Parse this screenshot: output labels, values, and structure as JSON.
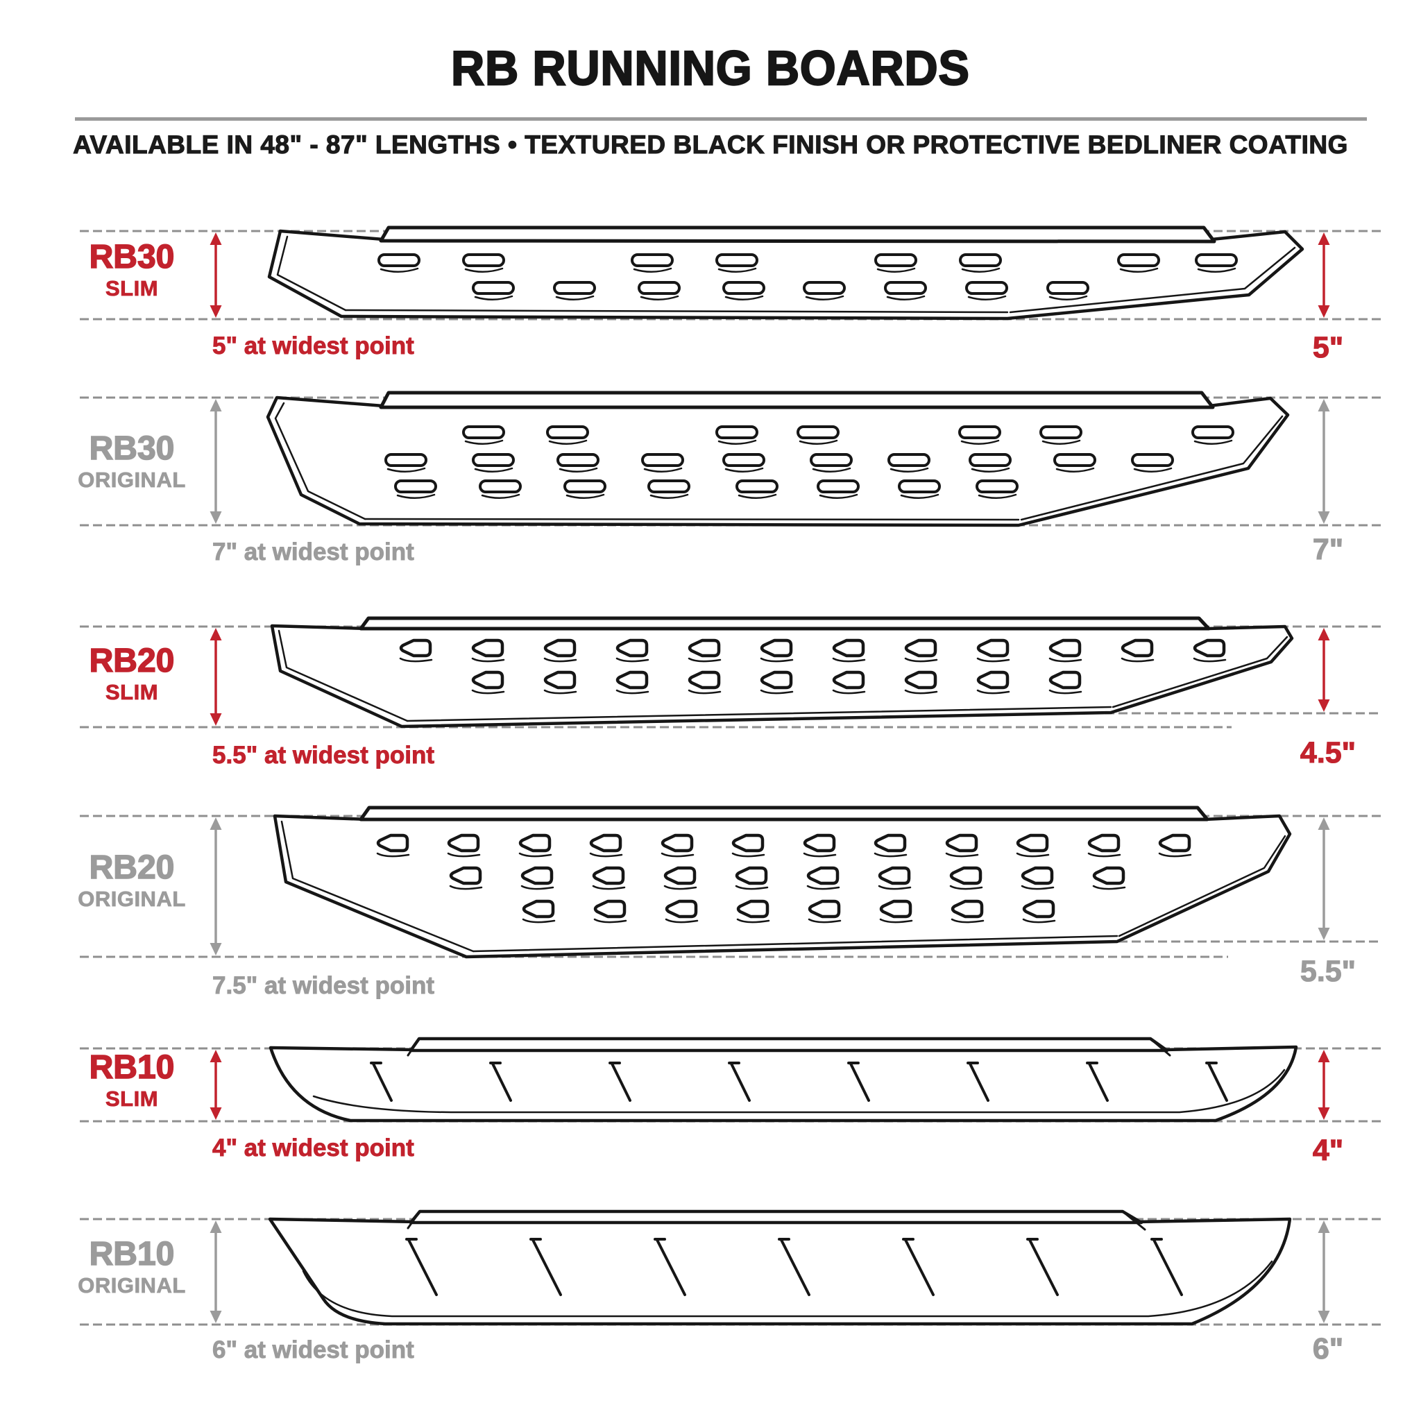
{
  "title": "RB RUNNING BOARDS",
  "subtitle": "AVAILABLE IN 48\" - 87\" LENGTHS  •  TEXTURED BLACK FINISH OR PROTECTIVE BEDLINER COATING",
  "theme": {
    "red": "#c2222d",
    "gray": "#9b9b9b",
    "dash_gray": "#8f8f8f",
    "line_ink": "#161616",
    "divider_gray": "#9a9a9a"
  },
  "rows": [
    {
      "series": "RB30",
      "variant": "SLIM",
      "accent": "red",
      "left_dim": "5\" at widest point",
      "right_dim": "5\""
    },
    {
      "series": "RB30",
      "variant": "ORIGINAL",
      "accent": "gray",
      "left_dim": "7\" at widest point",
      "right_dim": "7\""
    },
    {
      "series": "RB20",
      "variant": "SLIM",
      "accent": "red",
      "left_dim": "5.5\" at widest point",
      "right_dim": "4.5\""
    },
    {
      "series": "RB20",
      "variant": "ORIGINAL",
      "accent": "gray",
      "left_dim": "7.5\" at widest point",
      "right_dim": "5.5\""
    },
    {
      "series": "RB10",
      "variant": "SLIM",
      "accent": "red",
      "left_dim": "4\" at widest point",
      "right_dim": "4\""
    },
    {
      "series": "RB10",
      "variant": "ORIGINAL",
      "accent": "gray",
      "left_dim": "6\" at widest point",
      "right_dim": "6\""
    }
  ]
}
